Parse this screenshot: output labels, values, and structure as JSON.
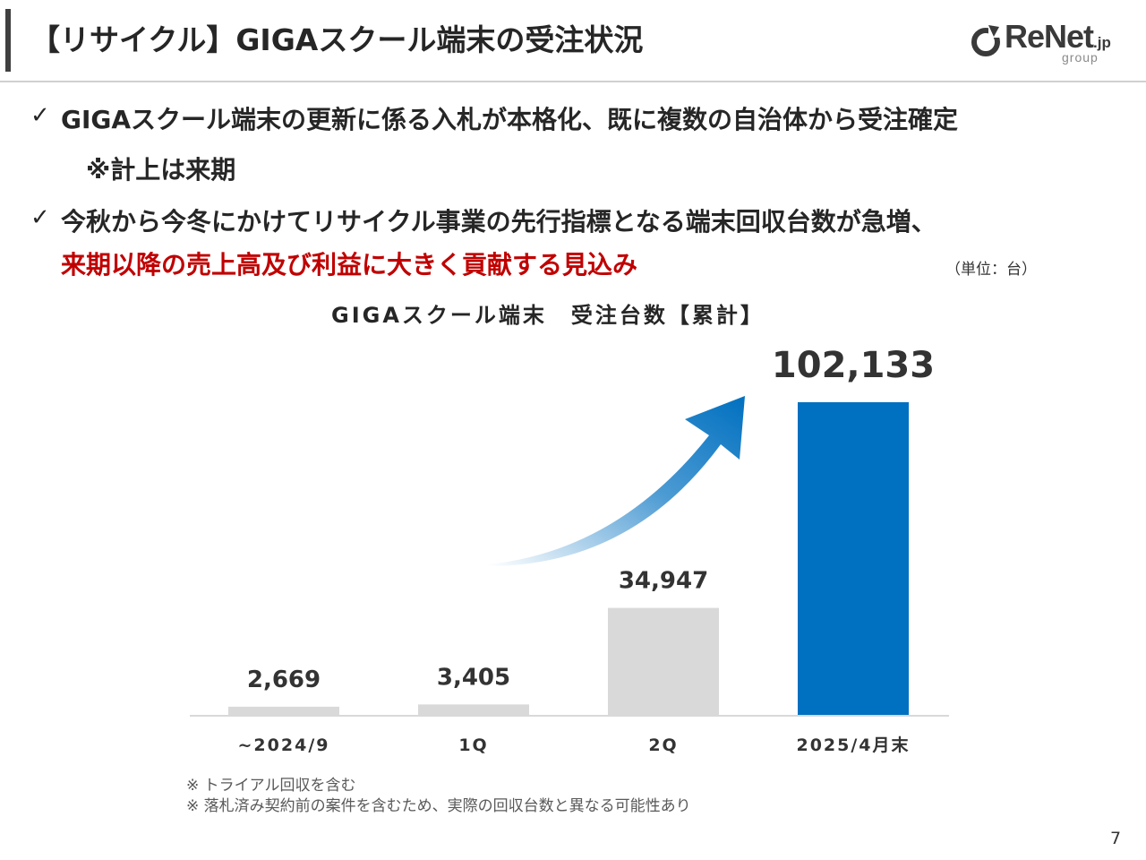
{
  "header": {
    "title": "【リサイクル】GIGAスクール端末の受注状況",
    "logo_main": "ReNet",
    "logo_suffix": ".jp",
    "logo_sub": "group"
  },
  "bullets": {
    "check_mark": "✓",
    "line1": "GIGAスクール端末の更新に係る入札が本格化、既に複数の自治体から受注確定",
    "line1_note": "※計上は来期",
    "line2": "今秋から今冬にかけてリサイクル事業の先行指標となる端末回収台数が急増、",
    "line2_highlight": "来期以降の売上高及び利益に大きく貢献する見込み"
  },
  "unit_note": "（単位：台）",
  "chart_heading": "GIGAスクール端末　受注台数【累計】",
  "colors": {
    "accent_blue": "#0070c0",
    "bar_gray": "#d9d9d9",
    "highlight_red": "#c00000",
    "axis_line": "#d9d9d9"
  },
  "chart_data": {
    "type": "bar",
    "categories": [
      "~2024/9",
      "1Q",
      "2Q",
      "2025/4月末"
    ],
    "values": [
      2669,
      3405,
      34947,
      102133
    ],
    "value_labels": [
      "2,669",
      "3,405",
      "34,947",
      "102,133"
    ],
    "highlight_index": 3,
    "ylim": [
      0,
      102133
    ],
    "grid": false,
    "annotation": "upward-arrow"
  },
  "footnotes": [
    "※ トライアル回収を含む",
    "※ 落札済み契約前の案件を含むため、実際の回収台数と異なる可能性あり"
  ],
  "page_number": "7"
}
